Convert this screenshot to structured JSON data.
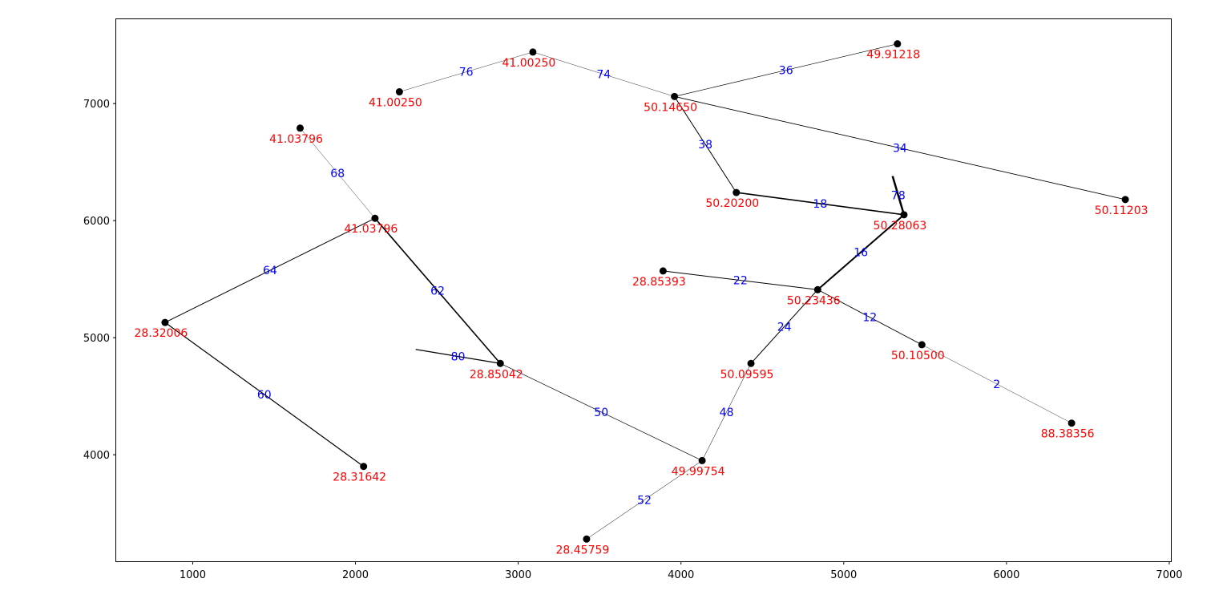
{
  "chart_data": {
    "type": "network",
    "xlim": [
      530,
      7010
    ],
    "ylim": [
      3090,
      7720
    ],
    "xticks": [
      1000,
      2000,
      3000,
      4000,
      5000,
      6000,
      7000
    ],
    "yticks": [
      4000,
      5000,
      6000,
      7000
    ],
    "grid": false,
    "colors": {
      "node": "#000000",
      "node_label": "#ff0000",
      "edge_label": "#0000ff",
      "edge": "#000000"
    },
    "nodes": [
      {
        "id": "n1",
        "x": 830,
        "y": 5130,
        "label": "28.32006"
      },
      {
        "id": "n2",
        "x": 2050,
        "y": 3900,
        "label": "28.31642"
      },
      {
        "id": "n3",
        "x": 2120,
        "y": 6020,
        "label": "41.03796"
      },
      {
        "id": "n4",
        "x": 1660,
        "y": 6790,
        "label": "41.03796"
      },
      {
        "id": "n5",
        "x": 2890,
        "y": 4780,
        "label": "28.85042"
      },
      {
        "id": "n6",
        "x": 2270,
        "y": 7100,
        "label": "41.00250"
      },
      {
        "id": "n7",
        "x": 3090,
        "y": 7440,
        "label": "41.00250"
      },
      {
        "id": "n8",
        "x": 3960,
        "y": 7060,
        "label": "50.14650"
      },
      {
        "id": "n9",
        "x": 5330,
        "y": 7510,
        "label": "49.91218"
      },
      {
        "id": "n10",
        "x": 6730,
        "y": 6180,
        "label": "50.11203"
      },
      {
        "id": "n11",
        "x": 4340,
        "y": 6240,
        "label": "50.20200"
      },
      {
        "id": "n12",
        "x": 5370,
        "y": 6050,
        "label": "50.28063"
      },
      {
        "id": "n13",
        "x": 3890,
        "y": 5570,
        "label": "28.85393"
      },
      {
        "id": "n14",
        "x": 4840,
        "y": 5410,
        "label": "50.23436"
      },
      {
        "id": "n15",
        "x": 5480,
        "y": 4940,
        "label": "50.10500"
      },
      {
        "id": "n16",
        "x": 6400,
        "y": 4270,
        "label": "88.38356"
      },
      {
        "id": "n17",
        "x": 4430,
        "y": 4780,
        "label": "50.09595"
      },
      {
        "id": "n18",
        "x": 4130,
        "y": 3950,
        "label": "49.99754"
      },
      {
        "id": "n19",
        "x": 3420,
        "y": 3280,
        "label": "28.45759"
      }
    ],
    "edges": [
      {
        "from": "n1",
        "to": "n3",
        "label": "64",
        "weight": 1.0
      },
      {
        "from": "n1",
        "to": "n2",
        "label": "60",
        "weight": 1.2
      },
      {
        "from": "n3",
        "to": "n4",
        "label": "68",
        "weight": 0.4
      },
      {
        "from": "n3",
        "to": "n5",
        "label": "62",
        "weight": 1.6
      },
      {
        "from": "n5",
        "to": "n18",
        "label": "50",
        "weight": 0.7
      },
      {
        "from": "n6",
        "to": "n7",
        "label": "76",
        "weight": 0.4
      },
      {
        "from": "n7",
        "to": "n8",
        "label": "74",
        "weight": 0.4
      },
      {
        "from": "n8",
        "to": "n9",
        "label": "36",
        "weight": 0.7
      },
      {
        "from": "n8",
        "to": "n10",
        "label": "34",
        "weight": 0.9
      },
      {
        "from": "n8",
        "to": "n11",
        "label": "38",
        "weight": 1.0
      },
      {
        "from": "n11",
        "to": "n12",
        "label": "18",
        "weight": 1.6
      },
      {
        "from": "n14",
        "to": "n12",
        "label": "16",
        "weight": 2.0
      },
      {
        "from": "n13",
        "to": "n14",
        "label": "22",
        "weight": 1.0
      },
      {
        "from": "n14",
        "to": "n15",
        "label": "12",
        "weight": 0.9
      },
      {
        "from": "n15",
        "to": "n16",
        "label": "2",
        "weight": 0.4
      },
      {
        "from": "n14",
        "to": "n17",
        "label": "24",
        "weight": 1.0
      },
      {
        "from": "n17",
        "to": "n18",
        "label": "48",
        "weight": 0.5
      },
      {
        "from": "n18",
        "to": "n19",
        "label": "52",
        "weight": 0.5
      }
    ],
    "stubs": [
      {
        "from": "n5",
        "to_x": 2370,
        "to_y": 4900,
        "label": "80",
        "weight": 1.2
      },
      {
        "from": "n12",
        "to_x": 5300,
        "to_y": 6380,
        "label": "78",
        "weight": 2.5
      }
    ]
  }
}
